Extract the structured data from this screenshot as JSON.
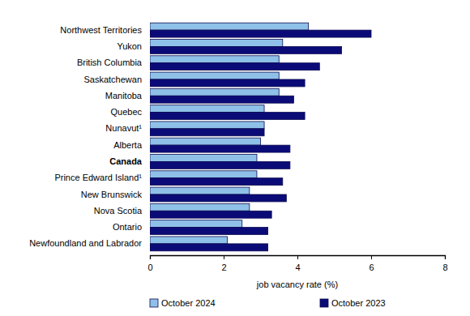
{
  "chart_data": {
    "type": "bar",
    "orientation": "horizontal",
    "categories": [
      "Northwest Territories",
      "Yukon",
      "British Columbia",
      "Saskatchewan",
      "Manitoba",
      "Quebec",
      "Nunavut¹",
      "Alberta",
      "Canada",
      "Prince Edward Island¹",
      "New Brunswick",
      "Nova Scotia",
      "Ontario",
      "Newfoundland and Labrador"
    ],
    "series": [
      {
        "name": "October 2024",
        "color": "#8fc1e8",
        "values": [
          4.3,
          3.6,
          3.5,
          3.5,
          3.5,
          3.1,
          3.1,
          3.0,
          2.9,
          2.9,
          2.7,
          2.7,
          2.5,
          2.1
        ]
      },
      {
        "name": "October 2023",
        "color": "#0b0b78",
        "values": [
          6.0,
          5.2,
          4.6,
          4.2,
          3.9,
          4.2,
          3.1,
          3.8,
          3.8,
          3.6,
          3.7,
          3.3,
          3.2,
          3.2
        ]
      }
    ],
    "xlabel": "job vacancy rate (%)",
    "xlim": [
      0,
      8
    ],
    "xticks": [
      0,
      2,
      4,
      6,
      8
    ],
    "grid": false,
    "legend": "bottom"
  }
}
